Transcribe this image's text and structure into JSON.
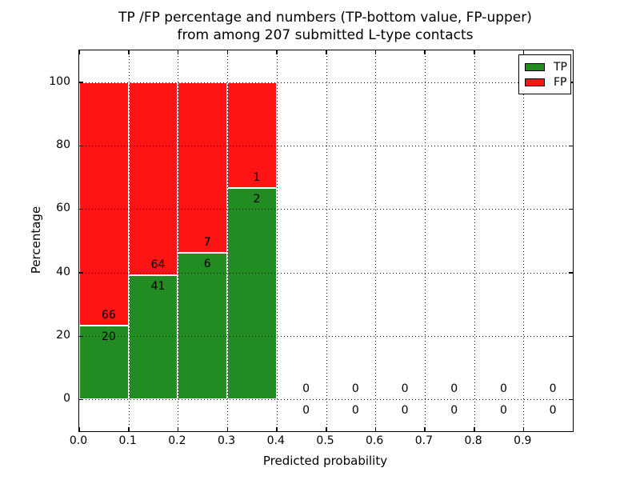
{
  "title": {
    "line1": "TP /FP percentage and numbers (TP-bottom value, FP-upper)",
    "line2": "from among 207 submitted L-type contacts"
  },
  "axes": {
    "xlabel": "Predicted probability",
    "ylabel": "Percentage"
  },
  "legend": {
    "position": "upper right",
    "items": [
      {
        "label": "TP",
        "color": "#228B22"
      },
      {
        "label": "FP",
        "color": "#FF1414"
      }
    ]
  },
  "chart_data": {
    "type": "bar",
    "stacked": true,
    "title": "TP /FP percentage and numbers (TP-bottom value, FP-upper)\nfrom among 207 submitted L-type contacts",
    "xlabel": "Predicted probability",
    "ylabel": "Percentage",
    "xlim": [
      0.0,
      1.0
    ],
    "ylim": [
      -10,
      110
    ],
    "xticks": [
      0.0,
      0.1,
      0.2,
      0.3,
      0.4,
      0.5,
      0.6,
      0.7,
      0.8,
      0.9
    ],
    "xtick_labels": [
      "0.0",
      "0.1",
      "0.2",
      "0.3",
      "0.4",
      "0.5",
      "0.6",
      "0.7",
      "0.8",
      "0.9"
    ],
    "yticks": [
      0,
      20,
      40,
      60,
      80,
      100
    ],
    "grid": true,
    "legend_position": "upper right",
    "total_contacts": 207,
    "series": [
      {
        "name": "TP",
        "color": "#228B22"
      },
      {
        "name": "FP",
        "color": "#FF1414"
      }
    ],
    "bins": [
      {
        "x0": 0.0,
        "x1": 0.1,
        "tp": 20,
        "fp": 66
      },
      {
        "x0": 0.1,
        "x1": 0.2,
        "tp": 41,
        "fp": 64
      },
      {
        "x0": 0.2,
        "x1": 0.3,
        "tp": 6,
        "fp": 7
      },
      {
        "x0": 0.3,
        "x1": 0.4,
        "tp": 2,
        "fp": 1
      },
      {
        "x0": 0.4,
        "x1": 0.5,
        "tp": 0,
        "fp": 0
      },
      {
        "x0": 0.5,
        "x1": 0.6,
        "tp": 0,
        "fp": 0
      },
      {
        "x0": 0.6,
        "x1": 0.7,
        "tp": 0,
        "fp": 0
      },
      {
        "x0": 0.7,
        "x1": 0.8,
        "tp": 0,
        "fp": 0
      },
      {
        "x0": 0.8,
        "x1": 0.9,
        "tp": 0,
        "fp": 0
      },
      {
        "x0": 0.9,
        "x1": 1.0,
        "tp": 0,
        "fp": 0
      }
    ]
  },
  "colors": {
    "tp": "#228B22",
    "fp": "#FF1414",
    "grid": "#000000",
    "axis": "#000000",
    "background": "#FFFFFF",
    "text": "#000000"
  }
}
